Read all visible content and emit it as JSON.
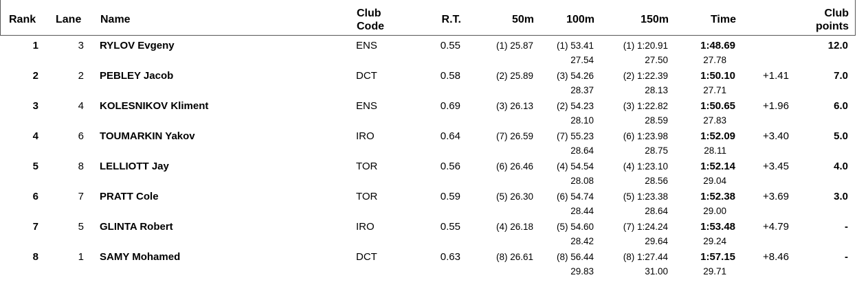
{
  "headers": {
    "rank": "Rank",
    "lane": "Lane",
    "name": "Name",
    "club_code_1": "Club",
    "club_code_2": "Code",
    "rt": "R.T.",
    "s50": "50m",
    "s100": "100m",
    "s150": "150m",
    "time": "Time",
    "club_points_1": "Club",
    "club_points_2": "points"
  },
  "rows": [
    {
      "rank": "1",
      "lane": "3",
      "name": "RYLOV Evgeny",
      "club": "ENS",
      "rt": "0.55",
      "s50": "(1) 25.87",
      "s100": "(1) 53.41",
      "s100_split": "27.54",
      "s150": "(1) 1:20.91",
      "s150_split": "27.50",
      "time": "1:48.69",
      "time_split": "27.78",
      "behind": "",
      "points": "12.0"
    },
    {
      "rank": "2",
      "lane": "2",
      "name": "PEBLEY Jacob",
      "club": "DCT",
      "rt": "0.58",
      "s50": "(2) 25.89",
      "s100": "(3) 54.26",
      "s100_split": "28.37",
      "s150": "(2) 1:22.39",
      "s150_split": "28.13",
      "time": "1:50.10",
      "time_split": "27.71",
      "behind": "+1.41",
      "points": "7.0"
    },
    {
      "rank": "3",
      "lane": "4",
      "name": "KOLESNIKOV Kliment",
      "club": "ENS",
      "rt": "0.69",
      "s50": "(3) 26.13",
      "s100": "(2) 54.23",
      "s100_split": "28.10",
      "s150": "(3) 1:22.82",
      "s150_split": "28.59",
      "time": "1:50.65",
      "time_split": "27.83",
      "behind": "+1.96",
      "points": "6.0"
    },
    {
      "rank": "4",
      "lane": "6",
      "name": "TOUMARKIN Yakov",
      "club": "IRO",
      "rt": "0.64",
      "s50": "(7) 26.59",
      "s100": "(7) 55.23",
      "s100_split": "28.64",
      "s150": "(6) 1:23.98",
      "s150_split": "28.75",
      "time": "1:52.09",
      "time_split": "28.11",
      "behind": "+3.40",
      "points": "5.0"
    },
    {
      "rank": "5",
      "lane": "8",
      "name": "LELLIOTT Jay",
      "club": "TOR",
      "rt": "0.56",
      "s50": "(6) 26.46",
      "s100": "(4) 54.54",
      "s100_split": "28.08",
      "s150": "(4) 1:23.10",
      "s150_split": "28.56",
      "time": "1:52.14",
      "time_split": "29.04",
      "behind": "+3.45",
      "points": "4.0"
    },
    {
      "rank": "6",
      "lane": "7",
      "name": "PRATT Cole",
      "club": "TOR",
      "rt": "0.59",
      "s50": "(5) 26.30",
      "s100": "(6) 54.74",
      "s100_split": "28.44",
      "s150": "(5) 1:23.38",
      "s150_split": "28.64",
      "time": "1:52.38",
      "time_split": "29.00",
      "behind": "+3.69",
      "points": "3.0"
    },
    {
      "rank": "7",
      "lane": "5",
      "name": "GLINTA Robert",
      "club": "IRO",
      "rt": "0.55",
      "s50": "(4) 26.18",
      "s100": "(5) 54.60",
      "s100_split": "28.42",
      "s150": "(7) 1:24.24",
      "s150_split": "29.64",
      "time": "1:53.48",
      "time_split": "29.24",
      "behind": "+4.79",
      "points": "-"
    },
    {
      "rank": "8",
      "lane": "1",
      "name": "SAMY Mohamed",
      "club": "DCT",
      "rt": "0.63",
      "s50": "(8) 26.61",
      "s100": "(8) 56.44",
      "s100_split": "29.83",
      "s150": "(8) 1:27.44",
      "s150_split": "31.00",
      "time": "1:57.15",
      "time_split": "29.71",
      "behind": "+8.46",
      "points": "-"
    }
  ]
}
